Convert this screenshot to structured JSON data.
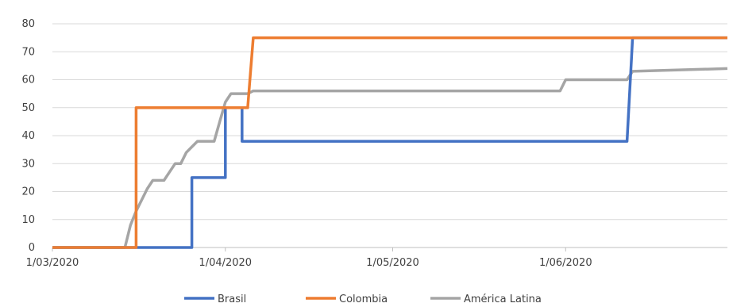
{
  "chart_data": {
    "type": "line",
    "title": "",
    "xlabel": "",
    "ylabel": "",
    "ylim": [
      0,
      80
    ],
    "yticks": [
      0,
      10,
      20,
      30,
      40,
      50,
      60,
      70,
      80
    ],
    "xlim": [
      "2020-03-01",
      "2020-06-30"
    ],
    "xticks": [
      {
        "date": "2020-03-01",
        "label": "1/03/2020"
      },
      {
        "date": "2020-04-01",
        "label": "1/04/2020"
      },
      {
        "date": "2020-05-01",
        "label": "1/05/2020"
      },
      {
        "date": "2020-06-01",
        "label": "1/06/2020"
      }
    ],
    "grid": "horizontal",
    "legend_position": "bottom",
    "series": [
      {
        "name": "Brasil",
        "color": "#4472C4",
        "points": [
          [
            "2020-03-01",
            0
          ],
          [
            "2020-03-26",
            0
          ],
          [
            "2020-03-26",
            25
          ],
          [
            "2020-04-01",
            25
          ],
          [
            "2020-04-01",
            50
          ],
          [
            "2020-04-04",
            50
          ],
          [
            "2020-04-04",
            38
          ],
          [
            "2020-06-12",
            38
          ],
          [
            "2020-06-13",
            75
          ],
          [
            "2020-06-30",
            75
          ]
        ]
      },
      {
        "name": "Colombia",
        "color": "#ED7D31",
        "points": [
          [
            "2020-03-01",
            0
          ],
          [
            "2020-03-16",
            0
          ],
          [
            "2020-03-16",
            50
          ],
          [
            "2020-04-05",
            50
          ],
          [
            "2020-04-06",
            75
          ],
          [
            "2020-06-30",
            75
          ]
        ]
      },
      {
        "name": "América Latina",
        "color": "#A5A5A5",
        "points": [
          [
            "2020-03-01",
            0
          ],
          [
            "2020-03-14",
            0
          ],
          [
            "2020-03-15",
            8
          ],
          [
            "2020-03-16",
            13
          ],
          [
            "2020-03-17",
            17
          ],
          [
            "2020-03-18",
            21
          ],
          [
            "2020-03-19",
            24
          ],
          [
            "2020-03-21",
            24
          ],
          [
            "2020-03-22",
            27
          ],
          [
            "2020-03-23",
            30
          ],
          [
            "2020-03-24",
            30
          ],
          [
            "2020-03-25",
            34
          ],
          [
            "2020-03-26",
            36
          ],
          [
            "2020-03-27",
            38
          ],
          [
            "2020-03-30",
            38
          ],
          [
            "2020-03-31",
            45
          ],
          [
            "2020-04-01",
            52
          ],
          [
            "2020-04-02",
            55
          ],
          [
            "2020-04-05",
            55
          ],
          [
            "2020-04-06",
            56
          ],
          [
            "2020-05-31",
            56
          ],
          [
            "2020-06-01",
            60
          ],
          [
            "2020-06-12",
            60
          ],
          [
            "2020-06-13",
            63
          ],
          [
            "2020-06-30",
            64
          ]
        ]
      }
    ]
  }
}
